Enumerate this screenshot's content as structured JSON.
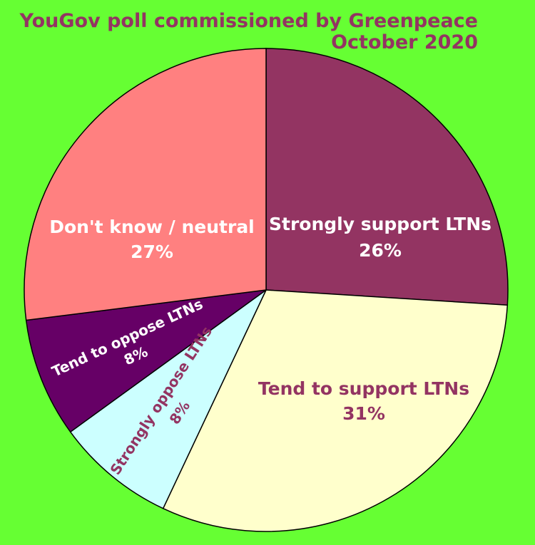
{
  "chart_data": {
    "type": "pie",
    "title": "YouGov poll commissioned by Greenpeace",
    "subtitle": "October 2020",
    "slices": [
      {
        "label": "Strongly support LTNs",
        "value": 26,
        "value_label": "26%",
        "color": "#933462",
        "text_color": "#ffffff"
      },
      {
        "label": "Tend to support LTNs",
        "value": 31,
        "value_label": "31%",
        "color": "#ffffcc",
        "text_color": "#933462"
      },
      {
        "label": "Strongly oppose LTNs",
        "value": 8,
        "value_label": "8%",
        "color": "#ccffff",
        "text_color": "#933462"
      },
      {
        "label": "Tend to oppose LTNs",
        "value": 8,
        "value_label": "8%",
        "color": "#660066",
        "text_color": "#ffffff"
      },
      {
        "label": "Don't know / neutral",
        "value": 27,
        "value_label": "27%",
        "color": "#ff8080",
        "text_color": "#ffffff"
      }
    ],
    "start_angle": "12 o'clock",
    "direction": "clockwise",
    "legend": "none",
    "background": "#66ff33",
    "title_color": "#933462"
  }
}
